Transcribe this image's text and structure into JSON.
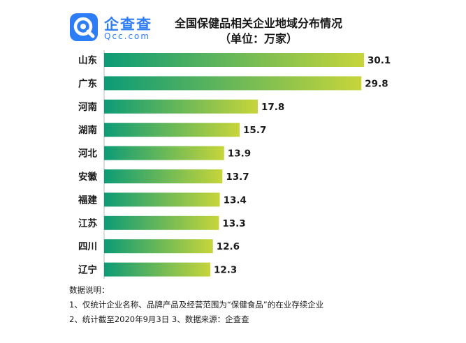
{
  "brand": {
    "name": "企查查",
    "url": "Qcc.com",
    "color": "#2d7df6"
  },
  "title": {
    "line1": "全国保健品相关企业地域分布情况",
    "line2": "（单位：万家）"
  },
  "chart_data": {
    "type": "bar",
    "orientation": "horizontal",
    "categories": [
      "山东",
      "广东",
      "河南",
      "湖南",
      "河北",
      "安徽",
      "福建",
      "江苏",
      "四川",
      "辽宁"
    ],
    "values": [
      30.1,
      29.8,
      17.8,
      15.7,
      13.9,
      13.7,
      13.4,
      13.3,
      12.6,
      12.3
    ],
    "title": "全国保健品相关企业地域分布情况",
    "subtitle": "（单位：万家）",
    "data_labels": true,
    "grid": false,
    "bar_gradient": [
      "#0c9b76",
      "#c7d53a"
    ]
  },
  "notes": {
    "heading": "数据说明：",
    "items": [
      "1、仅统计企业名称、品牌产品及经营范围为“保健食品”的在业存续企业",
      "2、统计截至2020年9月3日   3、数据来源：企查查"
    ]
  }
}
